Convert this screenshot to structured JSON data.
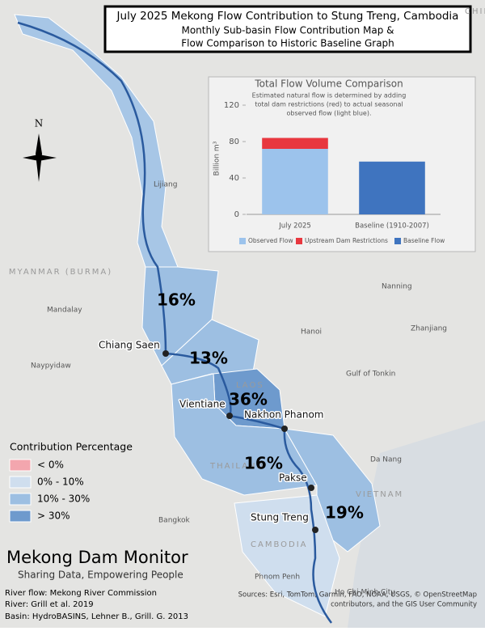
{
  "header": {
    "title": "July 2025 Mekong Flow Contribution to Stung Treng, Cambodia",
    "subtitle_lines": [
      "Monthly Sub-basin Flow Contribution Map &",
      "Flow Comparison to Historic Baseline Graph"
    ]
  },
  "north_label": "N",
  "map_labels": {
    "countries": [
      "CHINA",
      "MYANMAR (BURMA)",
      "LAOS",
      "THAILAND",
      "VIETNAM",
      "CAMBODIA"
    ],
    "places": [
      "Lijiang",
      "Mandalay",
      "Naypyidaw",
      "Nanning",
      "Hanoi",
      "Zhanjiang",
      "Gulf of Tonkin",
      "Da Nang",
      "Bangkok",
      "Phnom Penh",
      "Ho Chi Minh City"
    ],
    "stations": [
      "Chiang Saen",
      "Vientiane",
      "Nakhon Phanom",
      "Pakse",
      "Stung Treng"
    ],
    "basin_shares": [
      "16%",
      "13%",
      "36%",
      "16%",
      "19%"
    ]
  },
  "legend": {
    "title": "Contribution Percentage",
    "items": [
      {
        "label": "< 0%",
        "color": "#f3a6ae"
      },
      {
        "label": "0% - 10%",
        "color": "#cfdeee"
      },
      {
        "label": "10% - 30%",
        "color": "#9dbfe2"
      },
      {
        "label": "> 30%",
        "color": "#6e9acd"
      }
    ]
  },
  "branding": {
    "name": "Mekong Dam Monitor",
    "tagline": "Sharing Data, Empowering People"
  },
  "credits": [
    "River flow: Mekong River Commission",
    "River: Grill et al. 2019",
    "Basin: HydroBASINS, Lehner B., Grill. G. 2013"
  ],
  "attribution": [
    "Sources: Esri, TomTom, Garmin, FAO, NOAA, USGS, © OpenStreetMap",
    "contributors, and the GIS User Community"
  ],
  "chart_data": {
    "type": "bar",
    "stacked": true,
    "title": "Total Flow Volume Comparison",
    "subtitle": [
      "Estimated natural flow is determined by adding",
      "total dam restrictions (red) to actual seasonal",
      "observed flow (light blue)."
    ],
    "y_label": "Billion m³",
    "categories": [
      "July 2025",
      "Baseline (1910-2007)"
    ],
    "series": [
      {
        "name": "Observed Flow",
        "color": "#9cc3ec",
        "values": [
          72,
          null
        ]
      },
      {
        "name": "Upstream Dam Restrictions",
        "color": "#e8373f",
        "values": [
          12,
          null
        ]
      },
      {
        "name": "Baseline Flow",
        "color": "#3f74bf",
        "values": [
          null,
          58
        ]
      }
    ],
    "ylim": [
      0,
      120
    ],
    "yticks": [
      0,
      40,
      80,
      120
    ]
  }
}
